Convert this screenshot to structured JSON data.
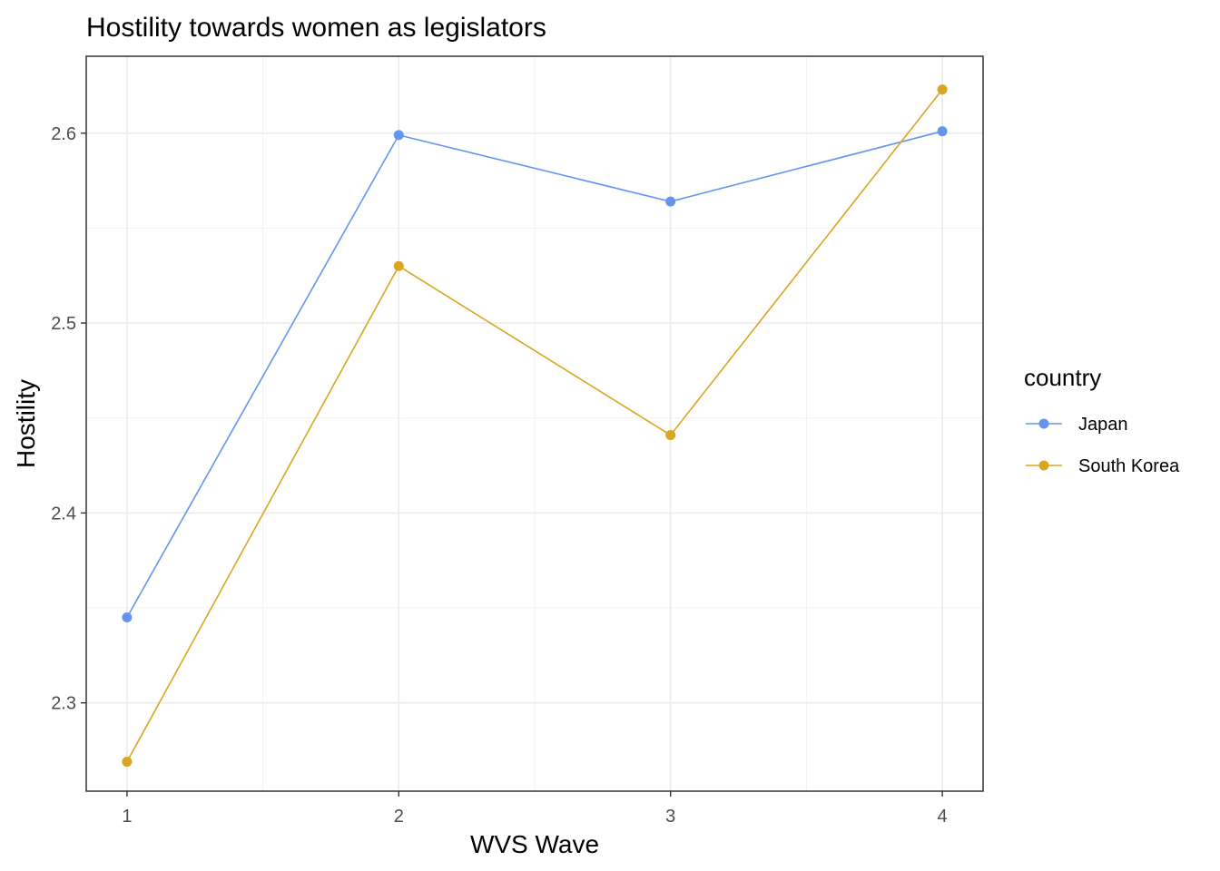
{
  "chart_data": {
    "type": "line",
    "title": "Hostility towards women as legislators",
    "xlabel": "WVS Wave",
    "ylabel": "Hostility",
    "x": [
      1,
      2,
      3,
      4
    ],
    "x_tick_labels": [
      "1",
      "2",
      "3",
      "4"
    ],
    "xlim": [
      0.85,
      4.15
    ],
    "ylim": [
      2.2535,
      2.6405
    ],
    "y_ticks": [
      2.3,
      2.4,
      2.5,
      2.6
    ],
    "y_tick_labels": [
      "2.3",
      "2.4",
      "2.5",
      "2.6"
    ],
    "grid": true,
    "legend_title": "country",
    "legend_position": "right",
    "series": [
      {
        "name": "Japan",
        "color": "#6495ED",
        "values": [
          2.345,
          2.599,
          2.564,
          2.601
        ]
      },
      {
        "name": "South Korea",
        "color": "#DAA520",
        "values": [
          2.269,
          2.53,
          2.441,
          2.623
        ]
      }
    ]
  }
}
